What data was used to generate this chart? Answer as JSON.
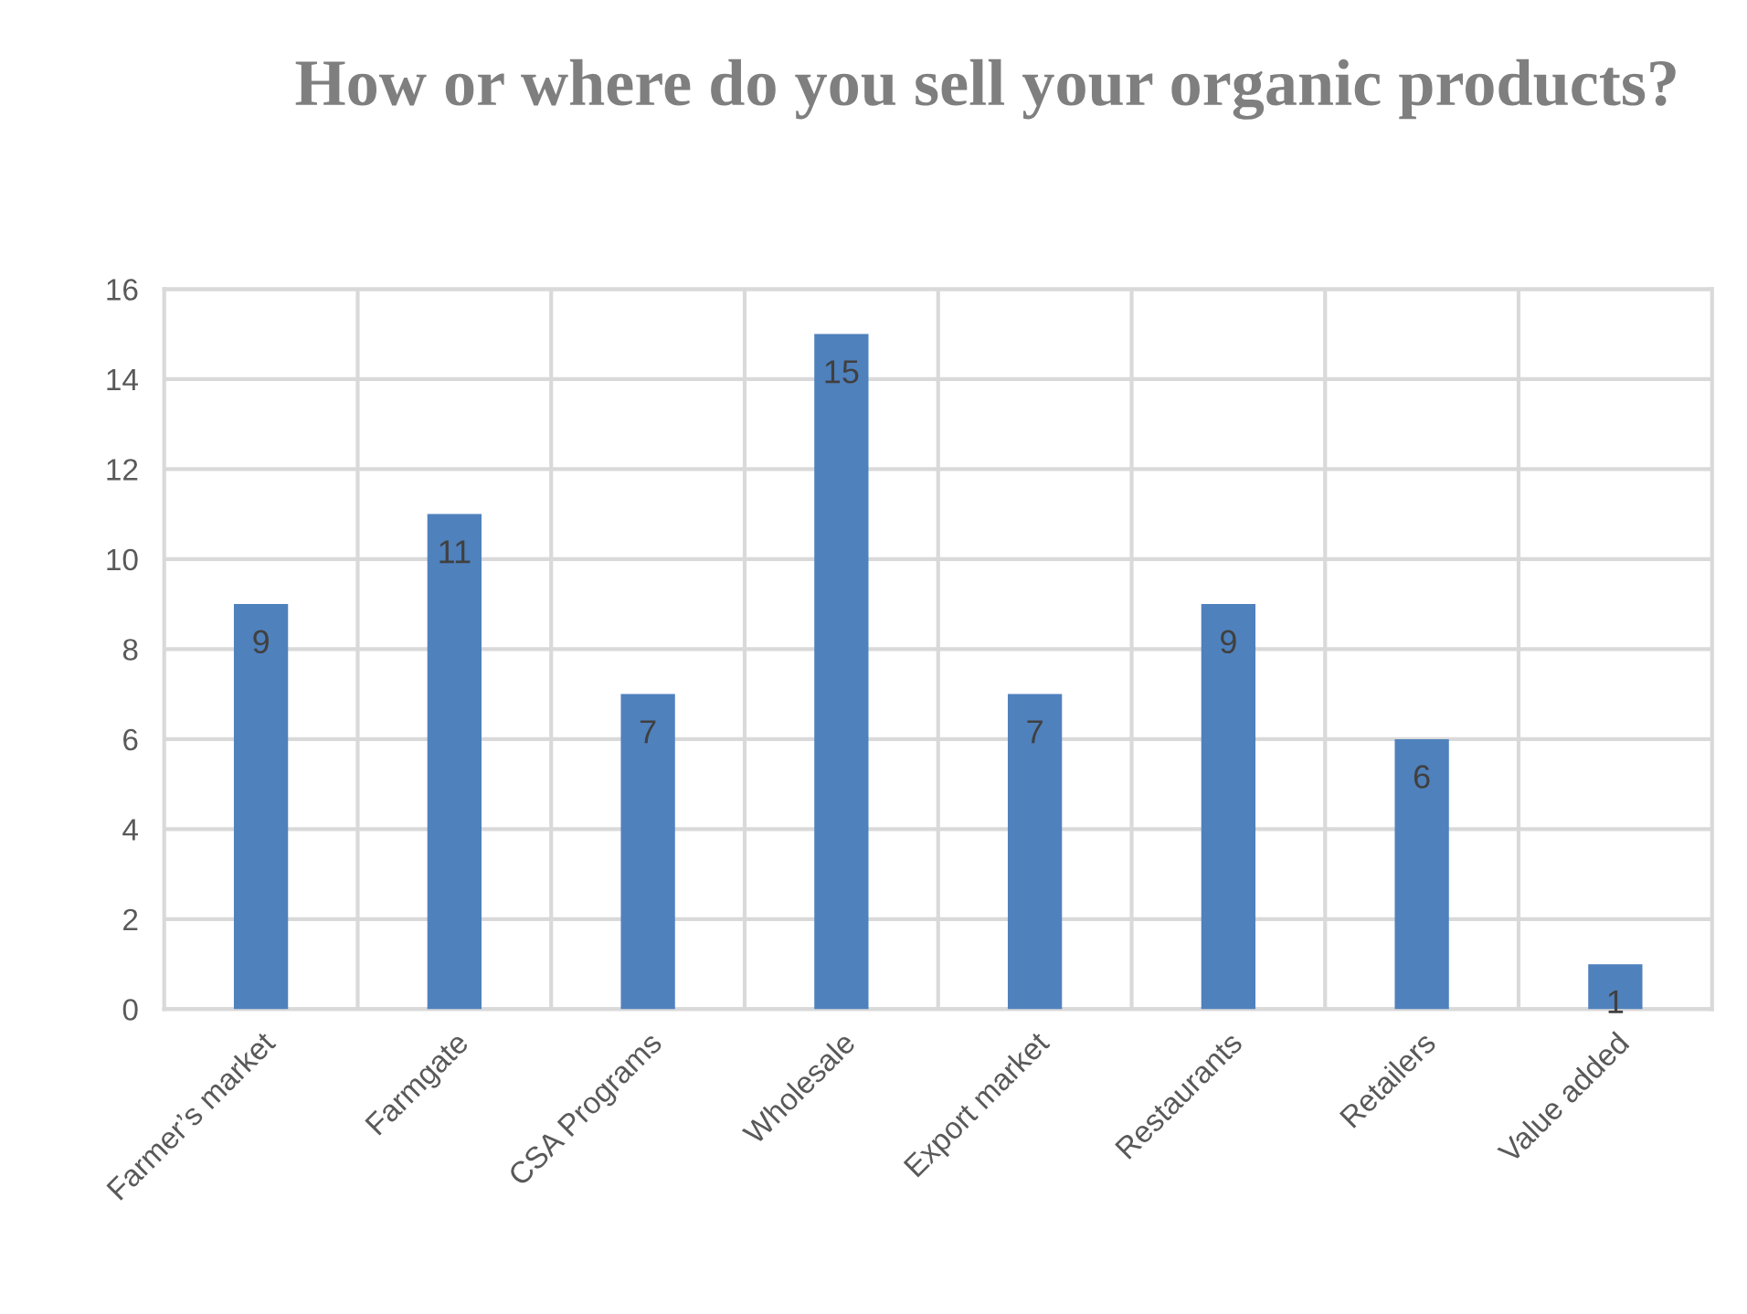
{
  "chart_data": {
    "type": "bar",
    "title": "How or where do you sell your organic products?",
    "categories": [
      "Farmer’s market",
      "Farmgate",
      "CSA Programs",
      "Wholesale",
      "Export market",
      "Restaurants",
      "Retailers",
      "Value added"
    ],
    "values": [
      9,
      11,
      7,
      15,
      7,
      9,
      6,
      1
    ],
    "color": "#4f81bd",
    "ylim": [
      0,
      16
    ],
    "yticks": [
      0,
      2,
      4,
      6,
      8,
      10,
      12,
      14,
      16
    ],
    "grid": true,
    "data_labels": true,
    "legend": false
  }
}
